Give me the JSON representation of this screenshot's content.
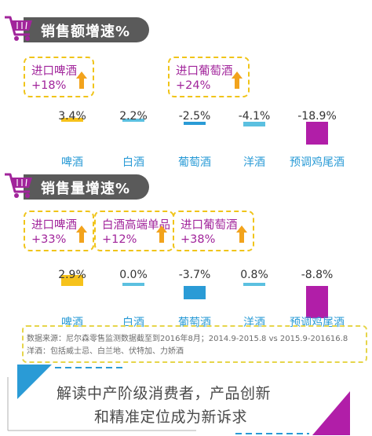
{
  "sections": [
    {
      "title": "销售额增速%",
      "callouts": [
        {
          "line1": "进口啤酒",
          "line2": "+18%"
        },
        {
          "line1": "进口葡萄酒",
          "line2": "+24%"
        }
      ]
    },
    {
      "title": "销售量增速%",
      "callouts": [
        {
          "line1": "进口啤酒",
          "line2": "+33%"
        },
        {
          "line1": "白酒高端单品",
          "line2": "+12%"
        },
        {
          "line1": "进口葡萄酒",
          "line2": "+38%"
        }
      ]
    }
  ],
  "chart_data": [
    {
      "type": "bar",
      "title": "销售额增速%",
      "categories": [
        "啤酒",
        "白酒",
        "葡萄酒",
        "洋酒",
        "预调鸡尾酒"
      ],
      "values": [
        3.4,
        2.2,
        -2.5,
        -4.1,
        -18.9
      ],
      "labels": [
        "3.4%",
        "2.2%",
        "-2.5%",
        "-4.1%",
        "-18.9%"
      ]
    },
    {
      "type": "bar",
      "title": "销售量增速%",
      "categories": [
        "啤酒",
        "白酒",
        "葡萄酒",
        "洋酒",
        "预调鸡尾酒"
      ],
      "values": [
        2.9,
        0.0,
        -3.7,
        0.8,
        -8.8
      ],
      "labels": [
        "2.9%",
        "0.0%",
        "-3.7%",
        "0.8%",
        "-8.8%"
      ]
    }
  ],
  "colors": {
    "beer": "#f6c21b",
    "baijiu": "#5bc0e0",
    "wine": "#2a9bd6",
    "spirits": "#5bc0e0",
    "cocktail": "#b11ea8",
    "accent_text": "#a1249b",
    "arrow": "#f2a31c"
  },
  "note": {
    "line1": "数据来源：尼尔森零售监测数据截至到2016年8月；2014.9-2015.8  vs  2015.9-201616.8",
    "line2": "洋酒：包括威士忌、白兰地、伏特加、力娇酒"
  },
  "banner": {
    "line1": "解读中产阶级消费者，产品创新",
    "line2": "和精准定位成为新诉求"
  }
}
